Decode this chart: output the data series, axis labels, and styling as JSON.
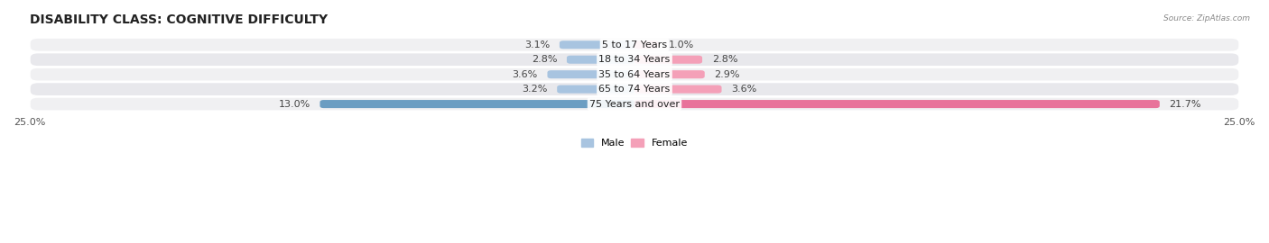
{
  "title": "DISABILITY CLASS: COGNITIVE DIFFICULTY",
  "source": "Source: ZipAtlas.com",
  "categories": [
    "5 to 17 Years",
    "18 to 34 Years",
    "35 to 64 Years",
    "65 to 74 Years",
    "75 Years and over"
  ],
  "male_values": [
    3.1,
    2.8,
    3.6,
    3.2,
    13.0
  ],
  "female_values": [
    1.0,
    2.8,
    2.9,
    3.6,
    21.7
  ],
  "max_val": 25.0,
  "male_color_light": "#a8c4e0",
  "male_color_dark": "#6b9dc2",
  "female_color_light": "#f4a0b8",
  "female_color_dark": "#e8729a",
  "row_bg_color_odd": "#f0f0f2",
  "row_bg_color_even": "#e8e8ec",
  "title_fontsize": 10,
  "label_fontsize": 8,
  "value_fontsize": 8,
  "tick_fontsize": 8,
  "legend_fontsize": 8
}
